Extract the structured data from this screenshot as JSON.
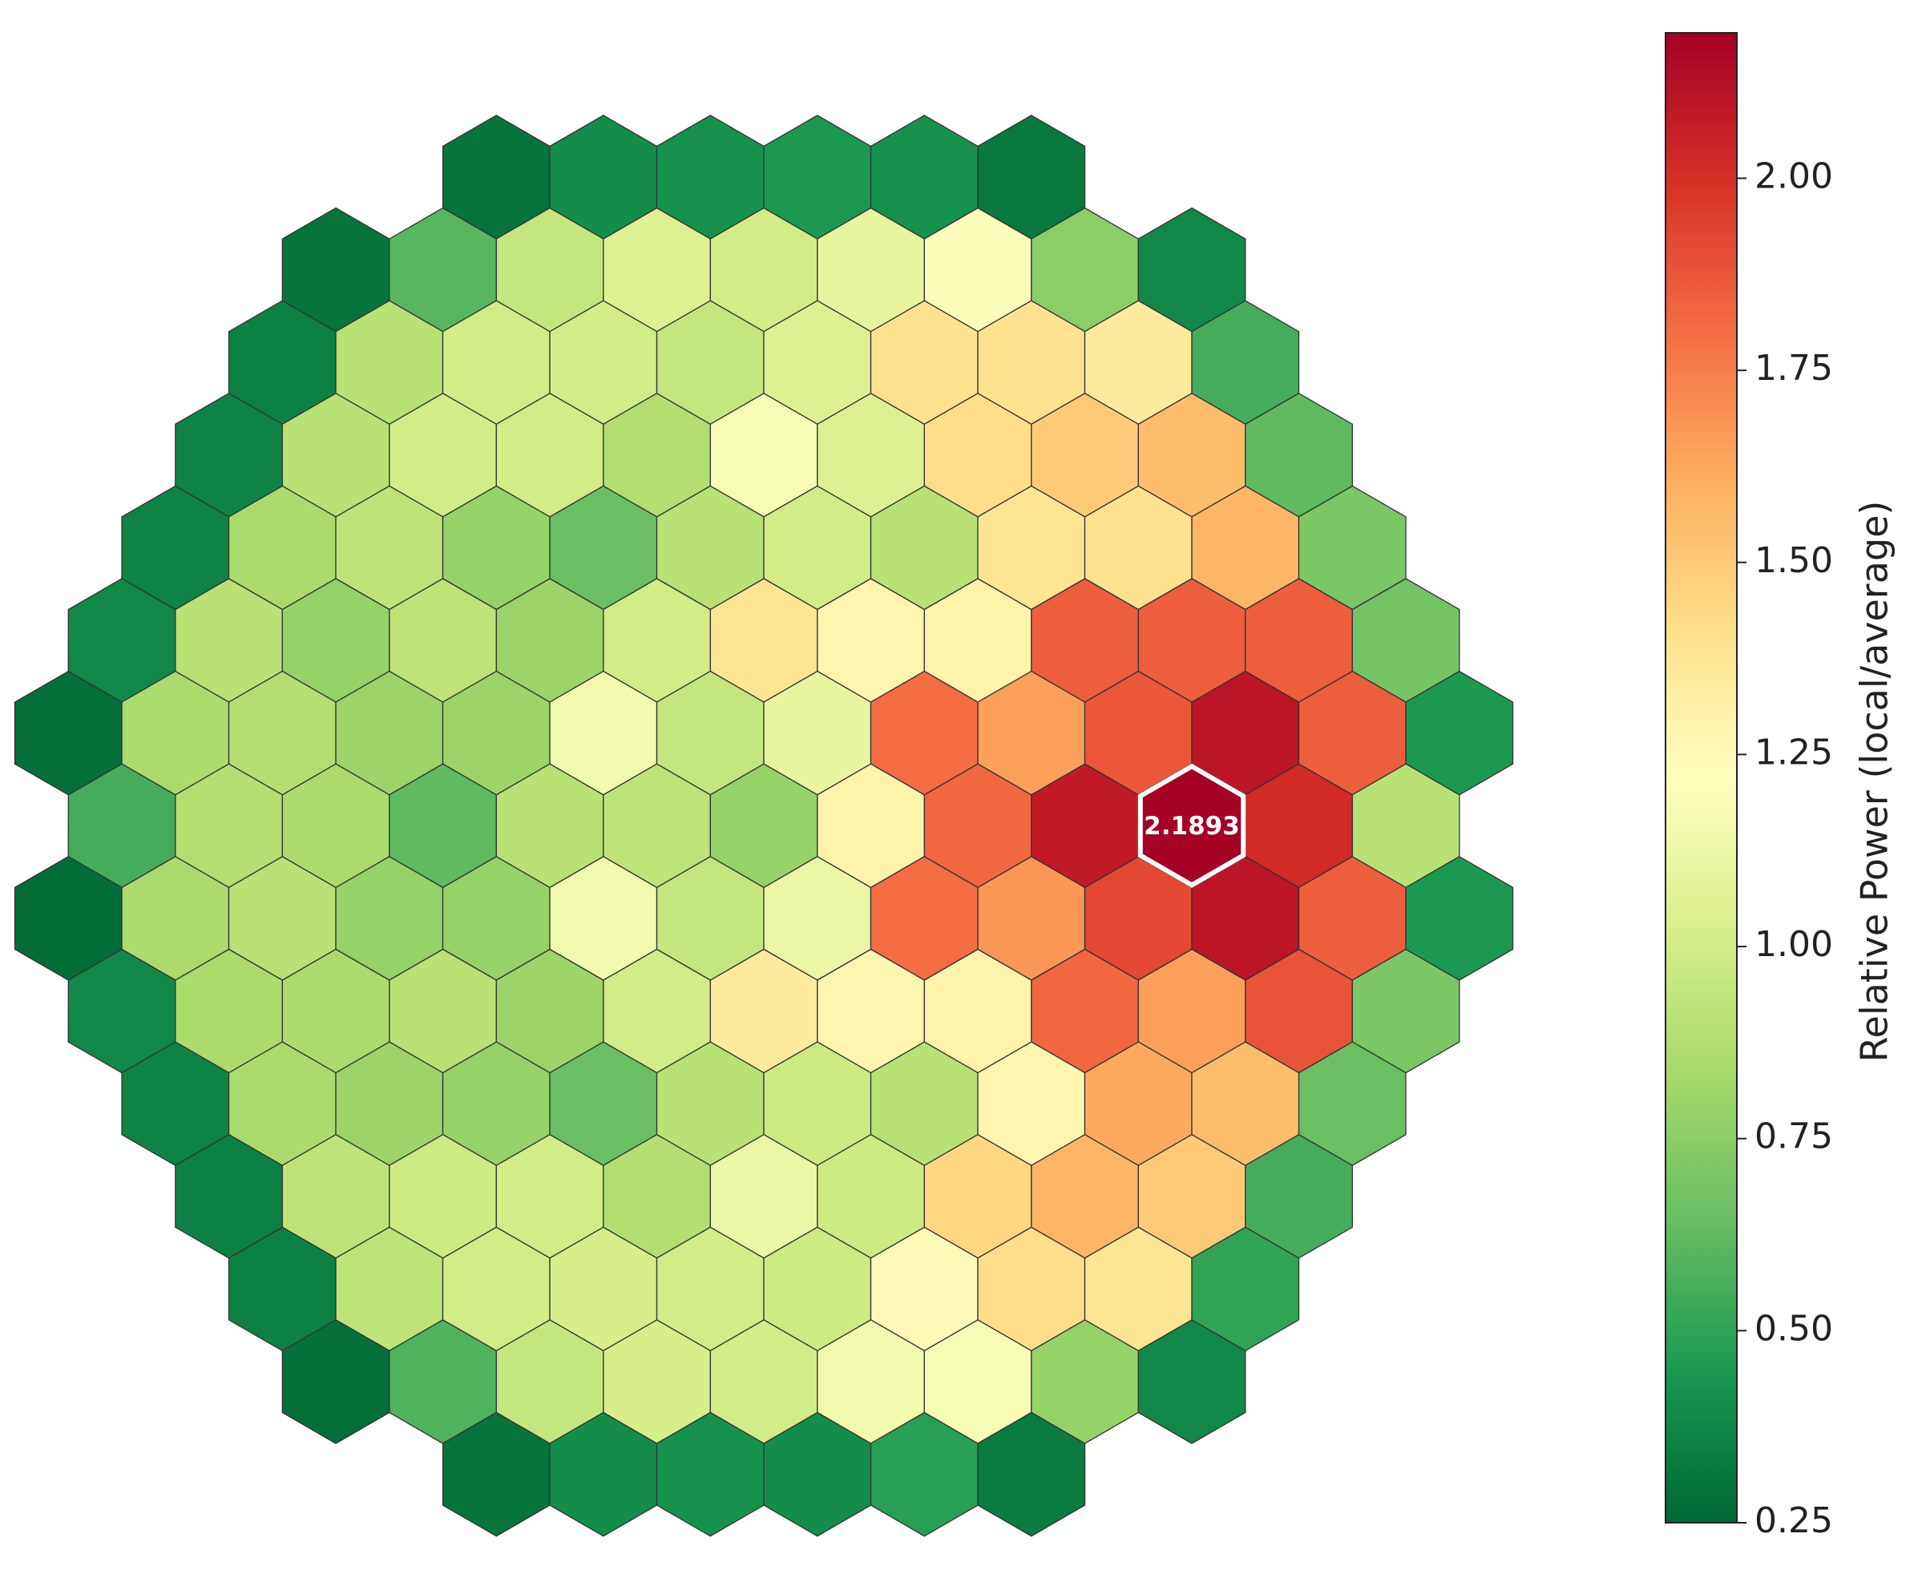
{
  "chart_data": {
    "type": "hexmap",
    "rows": [
      [
        0.3,
        0.4,
        0.42,
        0.45,
        0.42,
        0.32
      ],
      [
        0.3,
        0.6,
        0.95,
        1.05,
        1.0,
        1.1,
        1.2,
        0.75,
        0.38
      ],
      [
        0.35,
        0.9,
        1.0,
        1.0,
        0.95,
        1.05,
        1.4,
        1.4,
        1.35,
        0.55
      ],
      [
        0.36,
        0.9,
        1.0,
        1.0,
        0.88,
        1.18,
        1.05,
        1.42,
        1.5,
        1.55,
        0.62
      ],
      [
        0.36,
        0.85,
        0.92,
        0.78,
        0.65,
        0.9,
        1.0,
        0.9,
        1.38,
        1.4,
        1.58,
        0.7
      ],
      [
        0.38,
        0.9,
        0.78,
        0.92,
        0.8,
        1.0,
        1.38,
        1.28,
        1.3,
        1.85,
        1.85,
        1.85,
        0.68
      ],
      [
        0.28,
        0.85,
        0.88,
        0.8,
        0.8,
        1.15,
        0.95,
        1.1,
        1.8,
        1.65,
        1.87,
        2.1,
        1.85,
        0.45
      ],
      [
        0.55,
        0.88,
        0.85,
        0.62,
        0.9,
        0.92,
        0.78,
        1.3,
        1.82,
        2.08,
        2.1893,
        2.02,
        0.9
      ],
      [
        0.27,
        0.85,
        0.9,
        0.78,
        0.78,
        1.15,
        0.95,
        1.12,
        1.8,
        1.68,
        1.92,
        2.1,
        1.85,
        0.45
      ],
      [
        0.38,
        0.85,
        0.85,
        0.9,
        0.8,
        1.0,
        1.35,
        1.28,
        1.3,
        1.82,
        1.65,
        1.88,
        0.7
      ],
      [
        0.36,
        0.85,
        0.8,
        0.78,
        0.65,
        0.9,
        0.98,
        0.9,
        1.28,
        1.62,
        1.55,
        0.65
      ],
      [
        0.35,
        0.92,
        0.98,
        1.0,
        0.88,
        1.12,
        0.98,
        1.45,
        1.58,
        1.5,
        0.55
      ],
      [
        0.35,
        0.92,
        1.0,
        1.02,
        1.0,
        0.98,
        1.25,
        1.42,
        1.38,
        0.5
      ],
      [
        0.28,
        0.58,
        0.95,
        1.02,
        1.0,
        1.15,
        1.18,
        0.78,
        0.38
      ],
      [
        0.3,
        0.4,
        0.42,
        0.4,
        0.48,
        0.33
      ]
    ],
    "annotate_max": true,
    "colormap": [
      "#006837",
      "#1a9850",
      "#66bd63",
      "#a6d96a",
      "#d9ef8b",
      "#ffffbf",
      "#fee08b",
      "#fdae61",
      "#f46d43",
      "#d73027",
      "#a50026"
    ],
    "clim": [
      0.25,
      2.1893
    ],
    "cticks": [
      {
        "value": 0.25,
        "label": "0.25"
      },
      {
        "value": 0.5,
        "label": "0.50"
      },
      {
        "value": 0.75,
        "label": "0.75"
      },
      {
        "value": 1,
        "label": "1.00"
      },
      {
        "value": 1.25,
        "label": "1.25"
      },
      {
        "value": 1.5,
        "label": "1.50"
      },
      {
        "value": 1.75,
        "label": "1.75"
      },
      {
        "value": 2,
        "label": "2.00"
      }
    ],
    "colorbar_label": "Relative Power (local/average)"
  }
}
